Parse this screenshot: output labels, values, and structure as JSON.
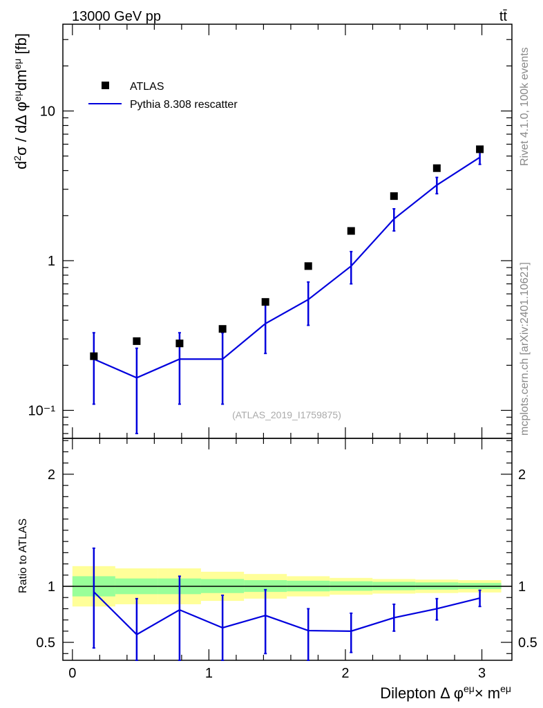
{
  "header": {
    "energy_label": "13000 GeV pp",
    "process_label": "tt̄"
  },
  "side_labels": {
    "rivet": "Rivet 4.1.0,  100k events",
    "mcplots": "mcplots.cern.ch [arXiv:2401.10621]"
  },
  "analysis_id": "(ATLAS_2019_I1759875)",
  "legend": {
    "data_label": "ATLAS",
    "mc_label": "Pythia 8.308 rescatter"
  },
  "colors": {
    "mc_line": "#0000dd",
    "data_marker": "#000000",
    "band_inner": "#99ff99",
    "band_outer": "#ffff99"
  },
  "chart_data": [
    {
      "type": "scatter",
      "title": "Main panel",
      "ylabel": "d²σ / dΔ φ^eμ dm^eμ [fb]",
      "yscale": "log",
      "ylim": [
        0.065,
        38
      ],
      "xlim": [
        -0.07,
        3.22
      ],
      "y_tick_labels": [
        "10⁻¹",
        "1",
        "10"
      ],
      "y_tick_values": [
        0.1,
        1,
        10
      ],
      "x": [
        0.157,
        0.471,
        0.785,
        1.1,
        1.414,
        1.728,
        2.042,
        2.356,
        2.67,
        2.985
      ],
      "bin_edges": [
        0.0,
        0.314,
        0.628,
        0.942,
        1.257,
        1.571,
        1.885,
        2.199,
        2.513,
        2.827,
        3.142
      ],
      "series": [
        {
          "name": "ATLAS",
          "values": [
            0.23,
            0.29,
            0.28,
            0.35,
            0.53,
            0.92,
            1.58,
            2.7,
            4.15,
            5.55
          ]
        },
        {
          "name": "Pythia 8.308 rescatter",
          "values": [
            0.22,
            0.165,
            0.22,
            0.22,
            0.38,
            0.55,
            0.92,
            1.9,
            3.2,
            4.9
          ],
          "err_low": [
            0.11,
            0.07,
            0.11,
            0.11,
            0.24,
            0.37,
            0.7,
            1.58,
            2.8,
            4.4
          ],
          "err_high": [
            0.33,
            0.26,
            0.33,
            0.33,
            0.55,
            0.72,
            1.15,
            2.22,
            3.6,
            5.4
          ]
        }
      ]
    },
    {
      "type": "line",
      "title": "Ratio panel",
      "xlabel": "Dilepton Δ φ^eμ× m^eμ",
      "ylabel": "Ratio to ATLAS",
      "ylim": [
        0.34,
        2.32
      ],
      "xlim": [
        -0.07,
        3.22
      ],
      "x_tick_labels": [
        "0",
        "1",
        "2",
        "3"
      ],
      "x_tick_values": [
        0,
        1,
        2,
        3
      ],
      "y_tick_labels": [
        "0.5",
        "1",
        "2"
      ],
      "y_tick_values": [
        0.5,
        1,
        2
      ],
      "x": [
        0.157,
        0.471,
        0.785,
        1.1,
        1.414,
        1.728,
        2.042,
        2.356,
        2.67,
        2.985
      ],
      "bin_edges": [
        0.0,
        0.314,
        0.628,
        0.942,
        1.257,
        1.571,
        1.885,
        2.199,
        2.513,
        2.827,
        3.142
      ],
      "band_inner": {
        "low": [
          0.91,
          0.93,
          0.93,
          0.94,
          0.95,
          0.955,
          0.96,
          0.965,
          0.97,
          0.975
        ],
        "high": [
          1.09,
          1.07,
          1.07,
          1.065,
          1.055,
          1.05,
          1.045,
          1.04,
          1.035,
          1.03
        ]
      },
      "band_outer": {
        "low": [
          0.82,
          0.84,
          0.84,
          0.87,
          0.89,
          0.91,
          0.925,
          0.935,
          0.94,
          0.945
        ],
        "high": [
          1.18,
          1.16,
          1.16,
          1.13,
          1.11,
          1.09,
          1.075,
          1.065,
          1.06,
          1.055
        ]
      },
      "series": [
        {
          "name": "Pythia 8.308 rescatter",
          "values": [
            0.95,
            0.57,
            0.79,
            0.63,
            0.74,
            0.605,
            0.6,
            0.72,
            0.8,
            0.895
          ],
          "err_low": [
            0.45,
            0.34,
            0.34,
            0.34,
            0.4,
            0.34,
            0.41,
            0.6,
            0.7,
            0.82
          ],
          "err_high": [
            1.34,
            0.89,
            1.09,
            0.92,
            0.97,
            0.8,
            0.76,
            0.84,
            0.89,
            0.965
          ]
        }
      ]
    }
  ]
}
